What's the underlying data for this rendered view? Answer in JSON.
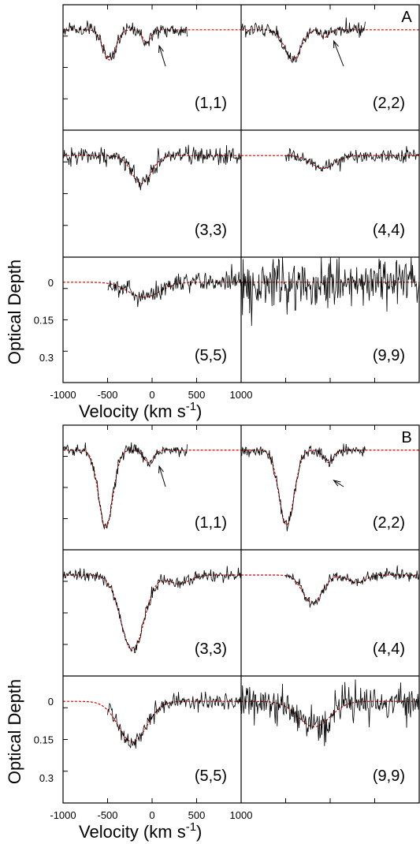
{
  "chart_data": [
    {
      "type": "line",
      "figure_label": "A",
      "y_axis_label": "Optical Depth",
      "x_axis_label_main": "Velocity (km s",
      "x_axis_label_sup": "-1",
      "x_axis_label_close": ")",
      "x_ticks": [
        "-1000",
        "-500",
        "0",
        "500",
        "1000"
      ],
      "y_ticks": [
        "0",
        "0.15",
        "0.3"
      ],
      "xlim": [
        -1000,
        1000
      ],
      "ylim": [
        -0.1,
        0.4
      ],
      "grid": false,
      "panels": [
        {
          "label": "(1,1)",
          "annotated": true,
          "noise": 0.014,
          "data_range": [
            -1000,
            400
          ],
          "fit": {
            "baseline": 0.0,
            "components": [
              {
                "center": -480,
                "sigma": 70,
                "depth": 0.12
              },
              {
                "center": -60,
                "sigma": 45,
                "depth": 0.05
              }
            ]
          }
        },
        {
          "label": "(2,2)",
          "annotated": true,
          "noise": 0.014,
          "data_range": [
            -1000,
            400
          ],
          "fit": {
            "baseline": 0.0,
            "components": [
              {
                "center": -420,
                "sigma": 90,
                "depth": 0.12
              },
              {
                "center": -60,
                "sigma": 45,
                "depth": 0.03
              }
            ]
          }
        },
        {
          "label": "(3,3)",
          "annotated": false,
          "noise": 0.016,
          "data_range": [
            -1000,
            1000
          ],
          "fit": {
            "baseline": 0.0,
            "components": [
              {
                "center": -120,
                "sigma": 110,
                "depth": 0.11
              }
            ]
          }
        },
        {
          "label": "(4,4)",
          "annotated": false,
          "noise": 0.014,
          "data_range": [
            -500,
            1000
          ],
          "fit": {
            "baseline": 0.0,
            "components": [
              {
                "center": -80,
                "sigma": 130,
                "depth": 0.05
              }
            ]
          }
        },
        {
          "label": "(5,5)",
          "annotated": false,
          "noise": 0.018,
          "data_range": [
            -500,
            1000
          ],
          "fit": {
            "baseline": 0.0,
            "components": [
              {
                "center": -90,
                "sigma": 180,
                "depth": 0.06
              }
            ]
          }
        },
        {
          "label": "(9,9)",
          "annotated": false,
          "noise": 0.055,
          "data_range": [
            -1000,
            1000
          ],
          "fit": {
            "baseline": 0.0,
            "components": []
          }
        }
      ]
    },
    {
      "type": "line",
      "figure_label": "B",
      "y_axis_label": "Optical Depth",
      "x_axis_label_main": "Velocity (km s",
      "x_axis_label_sup": "-1",
      "x_axis_label_close": ")",
      "x_ticks": [
        "-1000",
        "-500",
        "0",
        "500",
        "1000"
      ],
      "y_ticks": [
        "0",
        "0.15",
        "0.3"
      ],
      "xlim": [
        -1000,
        1000
      ],
      "ylim": [
        -0.1,
        0.4
      ],
      "grid": false,
      "panels": [
        {
          "label": "(1,1)",
          "annotated": true,
          "noise": 0.012,
          "data_range": [
            -1000,
            400
          ],
          "fit": {
            "baseline": 0.0,
            "components": [
              {
                "center": -520,
                "sigma": 80,
                "depth": 0.31
              },
              {
                "center": -40,
                "sigma": 55,
                "depth": 0.05
              }
            ]
          }
        },
        {
          "label": "(2,2)",
          "annotated": true,
          "noise": 0.012,
          "data_range": [
            -1000,
            400
          ],
          "fit": {
            "baseline": 0.0,
            "components": [
              {
                "center": -490,
                "sigma": 85,
                "depth": 0.3
              },
              {
                "center": -20,
                "sigma": 55,
                "depth": 0.05
              }
            ]
          }
        },
        {
          "label": "(3,3)",
          "annotated": false,
          "noise": 0.012,
          "data_range": [
            -1000,
            1000
          ],
          "fit": {
            "baseline": 0.0,
            "components": [
              {
                "center": -220,
                "sigma": 130,
                "depth": 0.3
              },
              {
                "center": 300,
                "sigma": 120,
                "depth": 0.035
              }
            ]
          }
        },
        {
          "label": "(4,4)",
          "annotated": false,
          "noise": 0.01,
          "data_range": [
            -500,
            1000
          ],
          "fit": {
            "baseline": 0.0,
            "components": [
              {
                "center": -200,
                "sigma": 110,
                "depth": 0.11
              },
              {
                "center": 300,
                "sigma": 100,
                "depth": 0.03
              }
            ]
          }
        },
        {
          "label": "(5,5)",
          "annotated": false,
          "noise": 0.016,
          "data_range": [
            -500,
            1000
          ],
          "fit": {
            "baseline": 0.0,
            "components": [
              {
                "center": -220,
                "sigma": 160,
                "depth": 0.16
              }
            ]
          }
        },
        {
          "label": "(9,9)",
          "annotated": false,
          "noise": 0.035,
          "data_range": [
            -1000,
            1000
          ],
          "fit": {
            "baseline": 0.0,
            "components": [
              {
                "center": -180,
                "sigma": 180,
                "depth": 0.1
              }
            ]
          }
        }
      ]
    }
  ]
}
